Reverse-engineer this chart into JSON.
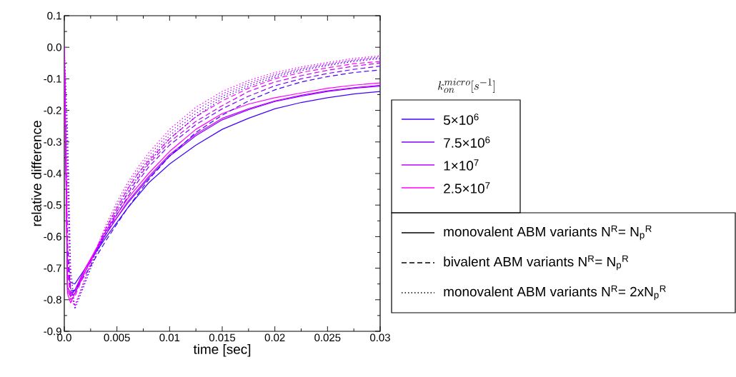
{
  "chart_data": {
    "type": "line",
    "xlabel": "time [sec]",
    "ylabel": "relative difference",
    "legend_title": "k_{on}^{micro}[s^{-1}]",
    "legend": "right",
    "xlim": [
      0,
      0.03
    ],
    "ylim": [
      -0.9,
      0.1
    ],
    "xticks": [
      {
        "value": 0,
        "label": "0.0"
      },
      {
        "value": 0.0025,
        "label": null
      },
      0.005,
      {
        "value": 0.0075,
        "label": null
      },
      0.01,
      {
        "value": 0.0125,
        "label": null
      },
      0.015,
      {
        "value": 0.0175,
        "label": null
      },
      0.02,
      {
        "value": 0.0225,
        "label": null
      },
      0.025,
      {
        "value": 0.0275,
        "label": null
      },
      0.03
    ],
    "yticks": [
      -0.9,
      {
        "value": -0.85,
        "label": null
      },
      -0.8,
      {
        "value": -0.75,
        "label": null
      },
      -0.7,
      {
        "value": -0.65,
        "label": null
      },
      -0.6,
      {
        "value": -0.55,
        "label": null
      },
      -0.5,
      {
        "value": -0.45,
        "label": null
      },
      -0.4,
      {
        "value": -0.35,
        "label": null
      },
      -0.3,
      {
        "value": -0.25,
        "label": null
      },
      -0.2,
      {
        "value": -0.15,
        "label": null
      },
      -0.1,
      {
        "value": -0.05,
        "label": null
      },
      {
        "value": 0,
        "label": "0.0"
      },
      {
        "value": 0.05,
        "label": null
      },
      0.1
    ],
    "annotations": [
      "monovalent ABM variants N$^{R}$= N$_{p}$$^{R}$",
      "bivalent ABM variants N$^{R}$= N$_{p}$$^{R}$",
      "monovalent ABM variants N$^{R}$= 2xN$_{p}$$^{R}$"
    ],
    "x": [
      0,
      0.0003,
      0.0006,
      0.001,
      0.002,
      0.003,
      0.004,
      0.005,
      0.006,
      0.007,
      0.008,
      0.01,
      0.0125,
      0.015,
      0.0175,
      0.02,
      0.0225,
      0.025,
      0.0275,
      0.03
    ],
    "series": [
      {
        "name": "5×10$^{6}$",
        "color": "#4000ff",
        "line_style": "solid",
        "values": [
          0,
          -0.73,
          -0.745,
          -0.75,
          -0.7,
          -0.65,
          -0.6,
          -0.555,
          -0.51,
          -0.47,
          -0.43,
          -0.37,
          -0.31,
          -0.26,
          -0.225,
          -0.195,
          -0.175,
          -0.16,
          -0.148,
          -0.14
        ]
      },
      {
        "name": "7.5×10$^{6}$",
        "color": "#8000ff",
        "line_style": "solid",
        "values": [
          0,
          -0.76,
          -0.78,
          -0.77,
          -0.7,
          -0.645,
          -0.59,
          -0.54,
          -0.495,
          -0.455,
          -0.415,
          -0.345,
          -0.28,
          -0.23,
          -0.198,
          -0.172,
          -0.155,
          -0.14,
          -0.13,
          -0.123
        ]
      },
      {
        "name": "1×10$^{7}$",
        "color": "#c000ff",
        "line_style": "solid",
        "values": [
          0,
          -0.77,
          -0.79,
          -0.77,
          -0.7,
          -0.645,
          -0.59,
          -0.54,
          -0.49,
          -0.45,
          -0.41,
          -0.34,
          -0.275,
          -0.225,
          -0.195,
          -0.17,
          -0.152,
          -0.138,
          -0.128,
          -0.12
        ]
      },
      {
        "name": "2.5×10$^{7}$",
        "color": "#ff00ff",
        "line_style": "solid",
        "values": [
          0,
          -0.78,
          -0.81,
          -0.78,
          -0.7,
          -0.64,
          -0.58,
          -0.53,
          -0.48,
          -0.44,
          -0.4,
          -0.33,
          -0.26,
          -0.21,
          -0.18,
          -0.16,
          -0.145,
          -0.13,
          -0.12,
          -0.113
        ]
      },
      {
        "color": "#4000ff",
        "line_style": "dashed",
        "values": [
          0,
          -0.62,
          -0.77,
          -0.77,
          -0.72,
          -0.665,
          -0.61,
          -0.56,
          -0.51,
          -0.465,
          -0.42,
          -0.345,
          -0.27,
          -0.215,
          -0.17,
          -0.135,
          -0.11,
          -0.093,
          -0.08,
          -0.072
        ]
      },
      {
        "color": "#8000ff",
        "line_style": "dashed",
        "values": [
          0,
          -0.66,
          -0.78,
          -0.78,
          -0.71,
          -0.65,
          -0.59,
          -0.53,
          -0.475,
          -0.425,
          -0.38,
          -0.31,
          -0.245,
          -0.195,
          -0.155,
          -0.122,
          -0.1,
          -0.083,
          -0.07,
          -0.06
        ]
      },
      {
        "color": "#c000ff",
        "line_style": "dashed",
        "values": [
          0,
          -0.68,
          -0.79,
          -0.78,
          -0.71,
          -0.645,
          -0.58,
          -0.52,
          -0.465,
          -0.415,
          -0.37,
          -0.3,
          -0.235,
          -0.185,
          -0.14,
          -0.11,
          -0.09,
          -0.073,
          -0.06,
          -0.05
        ]
      },
      {
        "color": "#ff00ff",
        "line_style": "dashed",
        "values": [
          0,
          -0.7,
          -0.8,
          -0.79,
          -0.71,
          -0.64,
          -0.57,
          -0.51,
          -0.45,
          -0.4,
          -0.36,
          -0.29,
          -0.22,
          -0.17,
          -0.13,
          -0.1,
          -0.08,
          -0.065,
          -0.052,
          -0.045
        ]
      },
      {
        "color": "#4000ff",
        "line_style": "dotted",
        "values": [
          0,
          -0.25,
          -0.7,
          -0.83,
          -0.745,
          -0.66,
          -0.585,
          -0.52,
          -0.46,
          -0.41,
          -0.365,
          -0.29,
          -0.22,
          -0.162,
          -0.124,
          -0.095,
          -0.074,
          -0.058,
          -0.045,
          -0.036
        ]
      },
      {
        "color": "#8000ff",
        "line_style": "dotted",
        "values": [
          0,
          -0.35,
          -0.76,
          -0.82,
          -0.74,
          -0.65,
          -0.575,
          -0.51,
          -0.45,
          -0.4,
          -0.355,
          -0.28,
          -0.21,
          -0.155,
          -0.118,
          -0.09,
          -0.07,
          -0.055,
          -0.042,
          -0.033
        ]
      },
      {
        "color": "#c000ff",
        "line_style": "dotted",
        "values": [
          0,
          -0.4,
          -0.78,
          -0.82,
          -0.73,
          -0.645,
          -0.57,
          -0.5,
          -0.44,
          -0.39,
          -0.345,
          -0.27,
          -0.2,
          -0.148,
          -0.112,
          -0.086,
          -0.067,
          -0.052,
          -0.04,
          -0.03
        ]
      },
      {
        "color": "#ff00ff",
        "line_style": "dotted",
        "values": [
          0,
          -0.45,
          -0.8,
          -0.82,
          -0.73,
          -0.64,
          -0.56,
          -0.49,
          -0.43,
          -0.38,
          -0.335,
          -0.26,
          -0.19,
          -0.14,
          -0.105,
          -0.08,
          -0.062,
          -0.048,
          -0.035,
          -0.027
        ]
      }
    ]
  }
}
